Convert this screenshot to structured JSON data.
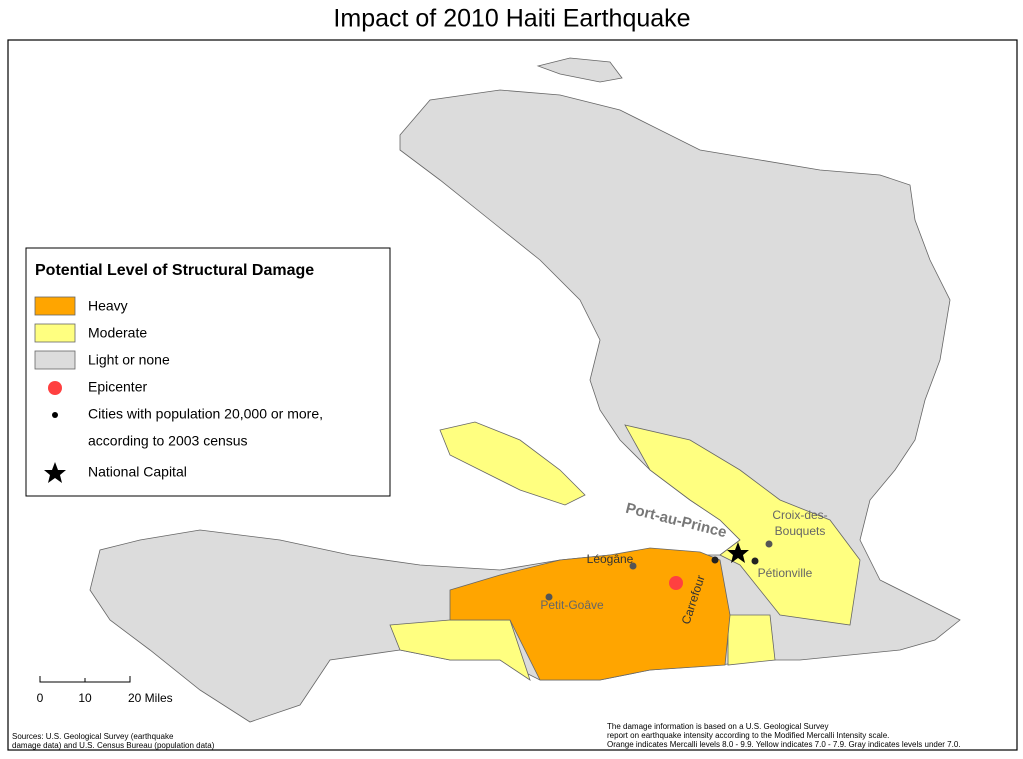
{
  "title": "Impact of 2010 Haiti Earthquake",
  "legend": {
    "title": "Potential Level of Structural Damage",
    "damage": [
      {
        "label": "Heavy",
        "color": "#ffa500"
      },
      {
        "label": "Moderate",
        "color": "#ffff80"
      },
      {
        "label": "Light or none",
        "color": "#dcdcdc"
      }
    ],
    "epicenter": {
      "label": "Epicenter",
      "color": "#ff4040"
    },
    "cities": [
      "Cities with population 20,000 or more,",
      "according to 2003 census"
    ],
    "capital": "National Capital"
  },
  "places": {
    "capital": "Port-au-Prince",
    "croix": [
      "Croix-des-",
      "Bouquets"
    ],
    "leogane": "Léogâne",
    "petit_goave": "Petit-Goâve",
    "carrefour": "Carrefour",
    "petionville": "Pétionville"
  },
  "scale": [
    "0",
    "10",
    "20 Miles"
  ],
  "sources": [
    "Sources:  U.S. Geological Survey (earthquake",
    "damage data) and U.S. Census Bureau (population data)"
  ],
  "note": [
    "The damage information is based on a U.S. Geological Survey",
    "report on earthquake intensity according to the Modified Mercalli Intensity scale.",
    "Orange indicates Mercalli levels 8.0 - 9.9. Yellow indicates 7.0 - 7.9. Gray indicates levels under 7.0."
  ]
}
